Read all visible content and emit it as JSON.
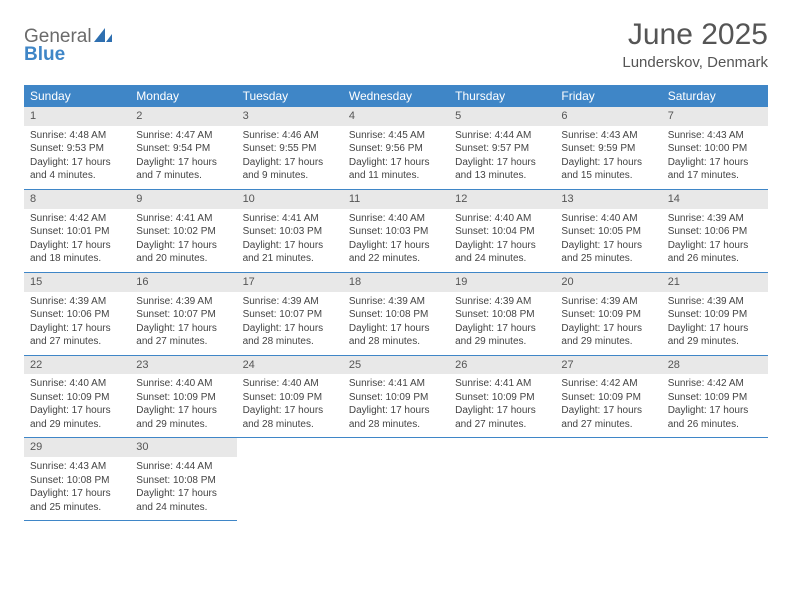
{
  "logo": {
    "line1": "General",
    "line2": "Blue"
  },
  "title": "June 2025",
  "location": "Lunderskov, Denmark",
  "colors": {
    "header_bg": "#3f86c7",
    "header_fg": "#ffffff",
    "daynum_bg": "#e8e8e8",
    "text": "#444444",
    "rule": "#3f86c7"
  },
  "weekdays": [
    "Sunday",
    "Monday",
    "Tuesday",
    "Wednesday",
    "Thursday",
    "Friday",
    "Saturday"
  ],
  "weeks": [
    [
      {
        "n": "1",
        "sr": "Sunrise: 4:48 AM",
        "ss": "Sunset: 9:53 PM",
        "d1": "Daylight: 17 hours",
        "d2": "and 4 minutes."
      },
      {
        "n": "2",
        "sr": "Sunrise: 4:47 AM",
        "ss": "Sunset: 9:54 PM",
        "d1": "Daylight: 17 hours",
        "d2": "and 7 minutes."
      },
      {
        "n": "3",
        "sr": "Sunrise: 4:46 AM",
        "ss": "Sunset: 9:55 PM",
        "d1": "Daylight: 17 hours",
        "d2": "and 9 minutes."
      },
      {
        "n": "4",
        "sr": "Sunrise: 4:45 AM",
        "ss": "Sunset: 9:56 PM",
        "d1": "Daylight: 17 hours",
        "d2": "and 11 minutes."
      },
      {
        "n": "5",
        "sr": "Sunrise: 4:44 AM",
        "ss": "Sunset: 9:57 PM",
        "d1": "Daylight: 17 hours",
        "d2": "and 13 minutes."
      },
      {
        "n": "6",
        "sr": "Sunrise: 4:43 AM",
        "ss": "Sunset: 9:59 PM",
        "d1": "Daylight: 17 hours",
        "d2": "and 15 minutes."
      },
      {
        "n": "7",
        "sr": "Sunrise: 4:43 AM",
        "ss": "Sunset: 10:00 PM",
        "d1": "Daylight: 17 hours",
        "d2": "and 17 minutes."
      }
    ],
    [
      {
        "n": "8",
        "sr": "Sunrise: 4:42 AM",
        "ss": "Sunset: 10:01 PM",
        "d1": "Daylight: 17 hours",
        "d2": "and 18 minutes."
      },
      {
        "n": "9",
        "sr": "Sunrise: 4:41 AM",
        "ss": "Sunset: 10:02 PM",
        "d1": "Daylight: 17 hours",
        "d2": "and 20 minutes."
      },
      {
        "n": "10",
        "sr": "Sunrise: 4:41 AM",
        "ss": "Sunset: 10:03 PM",
        "d1": "Daylight: 17 hours",
        "d2": "and 21 minutes."
      },
      {
        "n": "11",
        "sr": "Sunrise: 4:40 AM",
        "ss": "Sunset: 10:03 PM",
        "d1": "Daylight: 17 hours",
        "d2": "and 22 minutes."
      },
      {
        "n": "12",
        "sr": "Sunrise: 4:40 AM",
        "ss": "Sunset: 10:04 PM",
        "d1": "Daylight: 17 hours",
        "d2": "and 24 minutes."
      },
      {
        "n": "13",
        "sr": "Sunrise: 4:40 AM",
        "ss": "Sunset: 10:05 PM",
        "d1": "Daylight: 17 hours",
        "d2": "and 25 minutes."
      },
      {
        "n": "14",
        "sr": "Sunrise: 4:39 AM",
        "ss": "Sunset: 10:06 PM",
        "d1": "Daylight: 17 hours",
        "d2": "and 26 minutes."
      }
    ],
    [
      {
        "n": "15",
        "sr": "Sunrise: 4:39 AM",
        "ss": "Sunset: 10:06 PM",
        "d1": "Daylight: 17 hours",
        "d2": "and 27 minutes."
      },
      {
        "n": "16",
        "sr": "Sunrise: 4:39 AM",
        "ss": "Sunset: 10:07 PM",
        "d1": "Daylight: 17 hours",
        "d2": "and 27 minutes."
      },
      {
        "n": "17",
        "sr": "Sunrise: 4:39 AM",
        "ss": "Sunset: 10:07 PM",
        "d1": "Daylight: 17 hours",
        "d2": "and 28 minutes."
      },
      {
        "n": "18",
        "sr": "Sunrise: 4:39 AM",
        "ss": "Sunset: 10:08 PM",
        "d1": "Daylight: 17 hours",
        "d2": "and 28 minutes."
      },
      {
        "n": "19",
        "sr": "Sunrise: 4:39 AM",
        "ss": "Sunset: 10:08 PM",
        "d1": "Daylight: 17 hours",
        "d2": "and 29 minutes."
      },
      {
        "n": "20",
        "sr": "Sunrise: 4:39 AM",
        "ss": "Sunset: 10:09 PM",
        "d1": "Daylight: 17 hours",
        "d2": "and 29 minutes."
      },
      {
        "n": "21",
        "sr": "Sunrise: 4:39 AM",
        "ss": "Sunset: 10:09 PM",
        "d1": "Daylight: 17 hours",
        "d2": "and 29 minutes."
      }
    ],
    [
      {
        "n": "22",
        "sr": "Sunrise: 4:40 AM",
        "ss": "Sunset: 10:09 PM",
        "d1": "Daylight: 17 hours",
        "d2": "and 29 minutes."
      },
      {
        "n": "23",
        "sr": "Sunrise: 4:40 AM",
        "ss": "Sunset: 10:09 PM",
        "d1": "Daylight: 17 hours",
        "d2": "and 29 minutes."
      },
      {
        "n": "24",
        "sr": "Sunrise: 4:40 AM",
        "ss": "Sunset: 10:09 PM",
        "d1": "Daylight: 17 hours",
        "d2": "and 28 minutes."
      },
      {
        "n": "25",
        "sr": "Sunrise: 4:41 AM",
        "ss": "Sunset: 10:09 PM",
        "d1": "Daylight: 17 hours",
        "d2": "and 28 minutes."
      },
      {
        "n": "26",
        "sr": "Sunrise: 4:41 AM",
        "ss": "Sunset: 10:09 PM",
        "d1": "Daylight: 17 hours",
        "d2": "and 27 minutes."
      },
      {
        "n": "27",
        "sr": "Sunrise: 4:42 AM",
        "ss": "Sunset: 10:09 PM",
        "d1": "Daylight: 17 hours",
        "d2": "and 27 minutes."
      },
      {
        "n": "28",
        "sr": "Sunrise: 4:42 AM",
        "ss": "Sunset: 10:09 PM",
        "d1": "Daylight: 17 hours",
        "d2": "and 26 minutes."
      }
    ],
    [
      {
        "n": "29",
        "sr": "Sunrise: 4:43 AM",
        "ss": "Sunset: 10:08 PM",
        "d1": "Daylight: 17 hours",
        "d2": "and 25 minutes."
      },
      {
        "n": "30",
        "sr": "Sunrise: 4:44 AM",
        "ss": "Sunset: 10:08 PM",
        "d1": "Daylight: 17 hours",
        "d2": "and 24 minutes."
      },
      null,
      null,
      null,
      null,
      null
    ]
  ]
}
